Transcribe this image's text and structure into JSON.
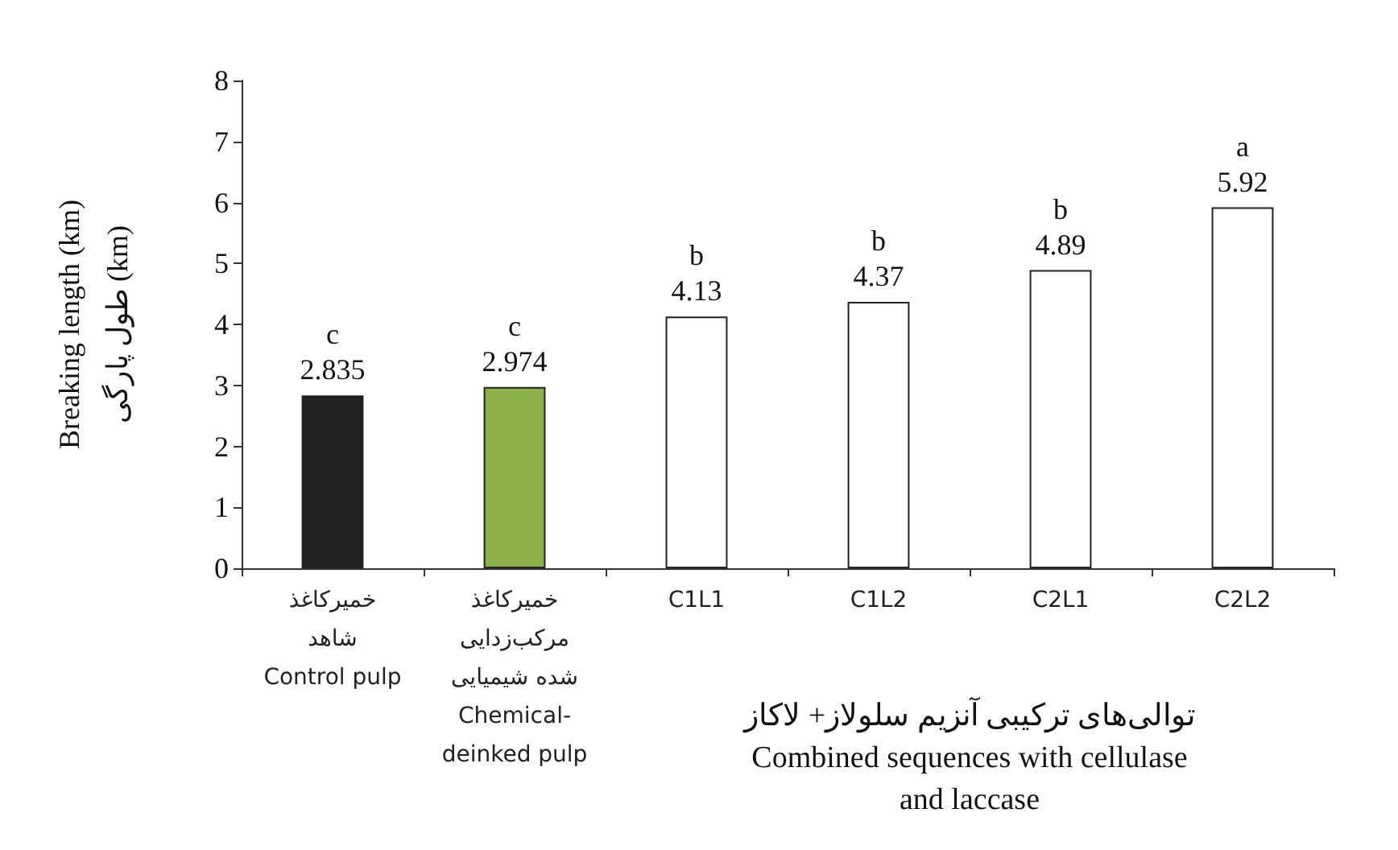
{
  "chart_data": {
    "type": "bar",
    "ylabel": "Breaking length (km)\nطول پارگی (km)",
    "categories": [
      "خمیرکاغذ\nشاهد\nControl pulp",
      "خمیرکاغذ\nمرکب‌زدایی\nشده شیمیایی\nChemical-\ndeinked pulp",
      "C1L1",
      "C1L2",
      "C2L1",
      "C2L2"
    ],
    "values": [
      2.835,
      2.974,
      4.13,
      4.37,
      4.89,
      5.92
    ],
    "colors": [
      "#222222",
      "#8db04a",
      "#ffffff",
      "#ffffff",
      "#ffffff",
      "#ffffff"
    ],
    "value_labels": [
      "c\n2.835",
      "c\n2.974",
      "b\n4.13",
      "b\n4.37",
      "b\n4.89",
      "a\n5.92"
    ],
    "annotations": [
      "توالی‌های ترکیبی آنزیم سلولاز+ لاکاز\nCombined sequences with cellulase\nand laccase"
    ],
    "ylim": [
      0,
      8
    ],
    "yticks": [
      0,
      1,
      2,
      3,
      4,
      5,
      6,
      7,
      8
    ],
    "grid": false
  }
}
